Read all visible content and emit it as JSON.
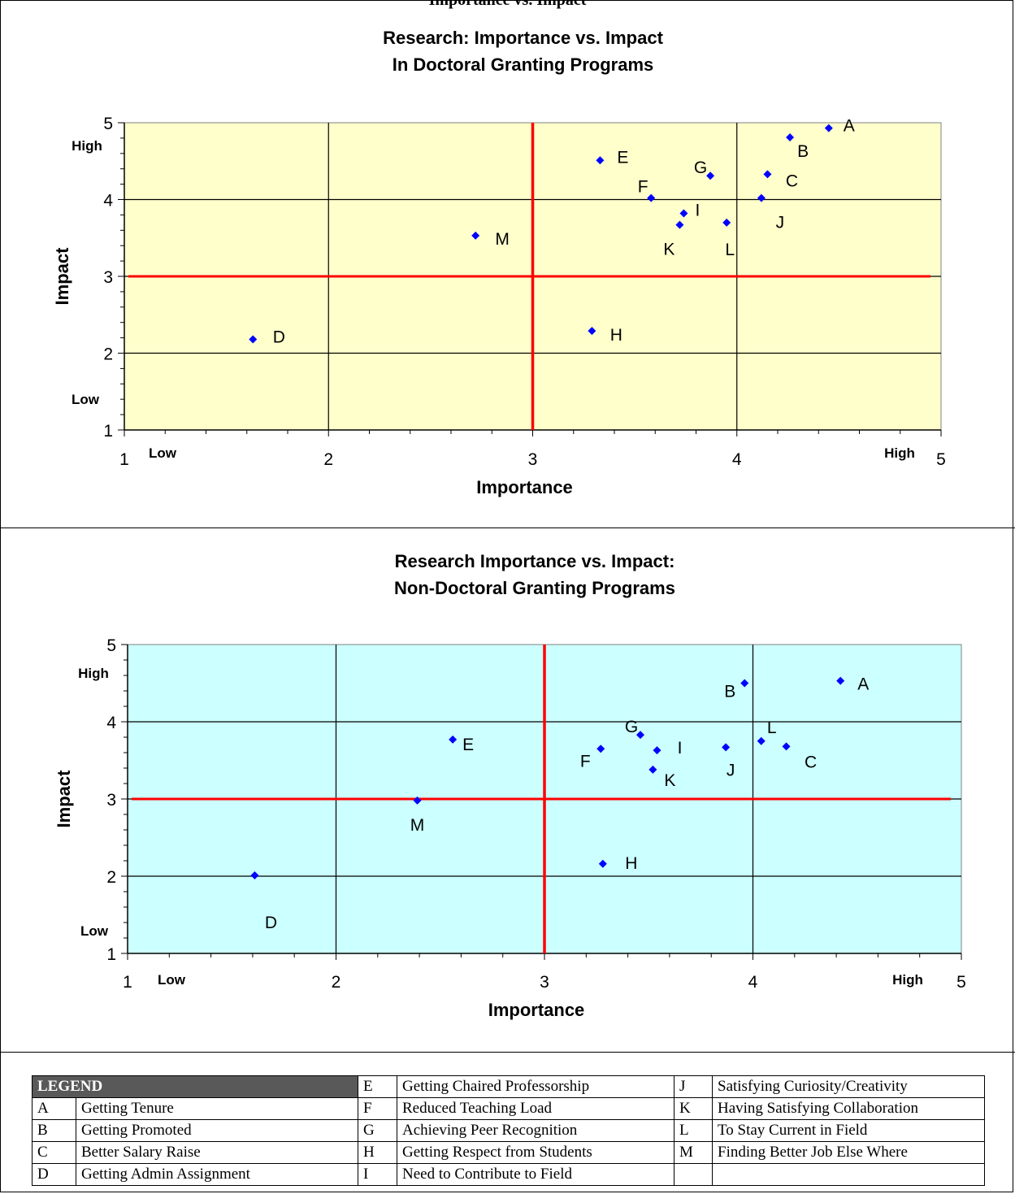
{
  "page_heading": "Importance vs. Impact",
  "chart_data": [
    {
      "type": "scatter",
      "title": [
        "Research: Importance vs. Impact",
        "In Doctoral Granting Programs"
      ],
      "xlabel": "Importance",
      "ylabel": "Impact",
      "xlim": [
        1,
        5
      ],
      "ylim": [
        1,
        5
      ],
      "xticks": [
        "1",
        "2",
        "3",
        "4",
        "5"
      ],
      "yticks": [
        "1",
        "2",
        "3",
        "4",
        "5"
      ],
      "x_low_label": "Low",
      "x_high_label": "High",
      "y_low_label": "Low",
      "y_high_label": "High",
      "background": "#ffffcc",
      "point_color": "#0000ff",
      "reference_line_color": "#ff0000",
      "reference_lines": {
        "x": 3,
        "y": 3
      },
      "grid": true,
      "points": [
        {
          "label": "A",
          "x": 4.45,
          "y": 4.93
        },
        {
          "label": "B",
          "x": 4.26,
          "y": 4.81
        },
        {
          "label": "C",
          "x": 4.15,
          "y": 4.33
        },
        {
          "label": "D",
          "x": 1.63,
          "y": 2.18
        },
        {
          "label": "E",
          "x": 3.33,
          "y": 4.51
        },
        {
          "label": "F",
          "x": 3.58,
          "y": 4.02
        },
        {
          "label": "G",
          "x": 3.87,
          "y": 4.31
        },
        {
          "label": "H",
          "x": 3.29,
          "y": 2.29
        },
        {
          "label": "I",
          "x": 3.74,
          "y": 3.82
        },
        {
          "label": "J",
          "x": 4.12,
          "y": 4.02
        },
        {
          "label": "K",
          "x": 3.72,
          "y": 3.67
        },
        {
          "label": "L",
          "x": 3.95,
          "y": 3.7
        },
        {
          "label": "M",
          "x": 2.72,
          "y": 3.53
        }
      ]
    },
    {
      "type": "scatter",
      "title": [
        "Research Importance vs. Impact:",
        "Non-Doctoral Granting Programs"
      ],
      "xlabel": "Importance",
      "ylabel": "Impact",
      "xlim": [
        1,
        5
      ],
      "ylim": [
        1,
        5
      ],
      "xticks": [
        "1",
        "2",
        "3",
        "4",
        "5"
      ],
      "yticks": [
        "1",
        "2",
        "3",
        "4",
        "5"
      ],
      "x_low_label": "Low",
      "x_high_label": "High",
      "y_low_label": "Low",
      "y_high_label": "High",
      "background": "#ccffff",
      "point_color": "#0000ff",
      "reference_line_color": "#ff0000",
      "reference_lines": {
        "x": 3,
        "y": 3
      },
      "grid": true,
      "points": [
        {
          "label": "A",
          "x": 4.42,
          "y": 4.53
        },
        {
          "label": "B",
          "x": 3.96,
          "y": 4.5
        },
        {
          "label": "C",
          "x": 4.16,
          "y": 3.68
        },
        {
          "label": "D",
          "x": 1.61,
          "y": 2.01
        },
        {
          "label": "E",
          "x": 2.56,
          "y": 3.77
        },
        {
          "label": "F",
          "x": 3.27,
          "y": 3.65
        },
        {
          "label": "G",
          "x": 3.46,
          "y": 3.83
        },
        {
          "label": "H",
          "x": 3.28,
          "y": 2.16
        },
        {
          "label": "I",
          "x": 3.54,
          "y": 3.63
        },
        {
          "label": "J",
          "x": 3.87,
          "y": 3.67
        },
        {
          "label": "K",
          "x": 3.52,
          "y": 3.38
        },
        {
          "label": "L",
          "x": 4.04,
          "y": 3.75
        },
        {
          "label": "M",
          "x": 2.39,
          "y": 2.98
        }
      ]
    }
  ],
  "legend": {
    "header": "LEGEND",
    "rows": [
      [
        {
          "code": "",
          "text": ""
        },
        {
          "code": "E",
          "text": "Getting Chaired Professorship"
        },
        {
          "code": "J",
          "text": "Satisfying Curiosity/Creativity"
        }
      ],
      [
        {
          "code": "A",
          "text": "Getting Tenure"
        },
        {
          "code": "F",
          "text": "Reduced Teaching Load"
        },
        {
          "code": "K",
          "text": "Having Satisfying Collaboration"
        }
      ],
      [
        {
          "code": "B",
          "text": "Getting Promoted"
        },
        {
          "code": "G",
          "text": "Achieving Peer Recognition"
        },
        {
          "code": "L",
          "text": "To Stay Current in Field"
        }
      ],
      [
        {
          "code": "C",
          "text": "Better Salary Raise"
        },
        {
          "code": "H",
          "text": "Getting Respect from Students"
        },
        {
          "code": "M",
          "text": "Finding Better Job Else Where"
        }
      ],
      [
        {
          "code": "D",
          "text": "Getting Admin Assignment"
        },
        {
          "code": "I",
          "text": "Need to Contribute to Field"
        },
        {
          "code": "",
          "text": ""
        }
      ]
    ]
  }
}
